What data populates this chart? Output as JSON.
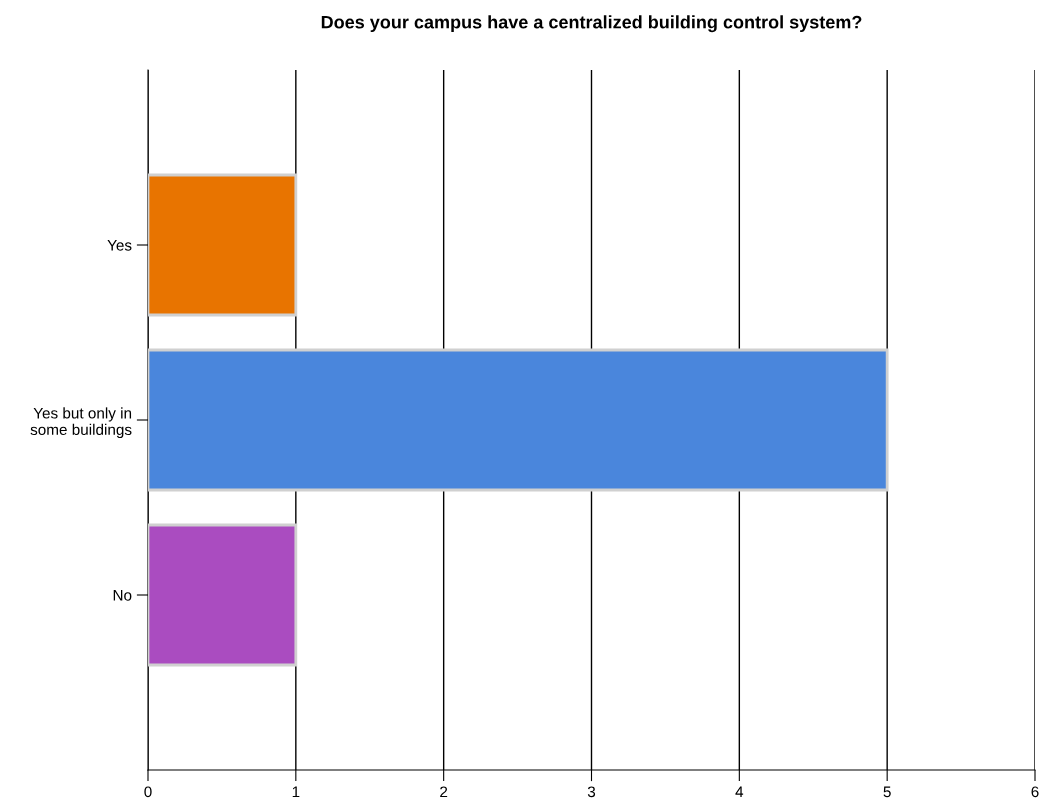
{
  "chart_data": {
    "type": "bar",
    "orientation": "horizontal",
    "title": "Does your campus have a centralized building control system?",
    "categories": [
      "Yes",
      "Yes but only in\nsome buildings",
      "No"
    ],
    "values": [
      1,
      5,
      1
    ],
    "colors": [
      "#e87400",
      "#4a86dc",
      "#aa4cc0"
    ],
    "xlim": [
      0,
      6
    ],
    "xticks": [
      0,
      1,
      2,
      3,
      4,
      5,
      6
    ],
    "grid": "x",
    "legend": false
  }
}
